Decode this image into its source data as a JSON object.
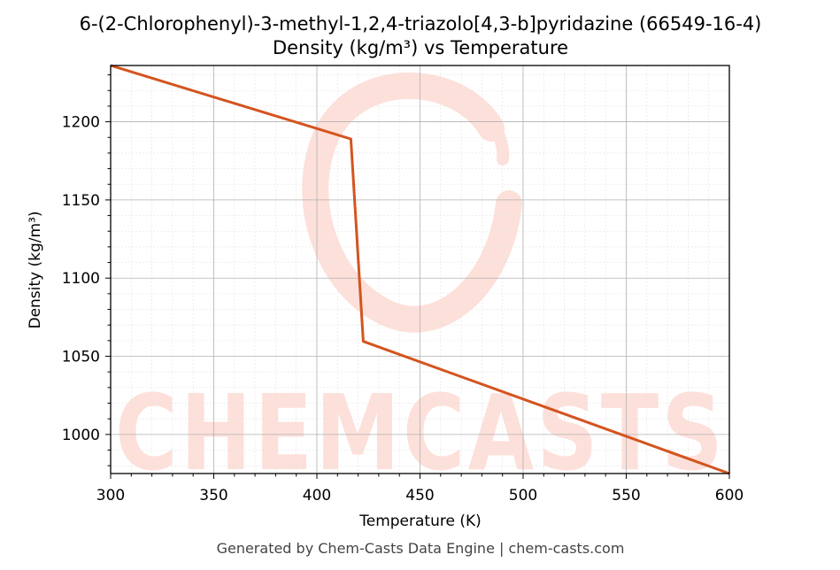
{
  "chart_data": {
    "type": "line",
    "title": "6-(2-Chlorophenyl)-3-methyl-1,2,4-triazolo[4,3-b]pyridazine (66549-16-4)",
    "subtitle": "Density (kg/m³) vs Temperature",
    "xlabel": "Temperature (K)",
    "ylabel": "Density (kg/m³)",
    "xlim": [
      300,
      600
    ],
    "ylim": [
      975,
      1236
    ],
    "xticks": [
      300,
      350,
      400,
      450,
      500,
      550,
      600
    ],
    "yticks": [
      1000,
      1050,
      1100,
      1150,
      1200
    ],
    "grid": true,
    "series": [
      {
        "color": "#d4541f",
        "x": [
          300,
          416.5,
          422.5,
          600
        ],
        "y": [
          1236,
          1189,
          1059.5,
          975
        ]
      }
    ]
  },
  "watermark": {
    "text": "CHEMCASTS",
    "color": "#fde0da"
  },
  "footer": "Generated by Chem-Casts Data Engine | chem-casts.com"
}
